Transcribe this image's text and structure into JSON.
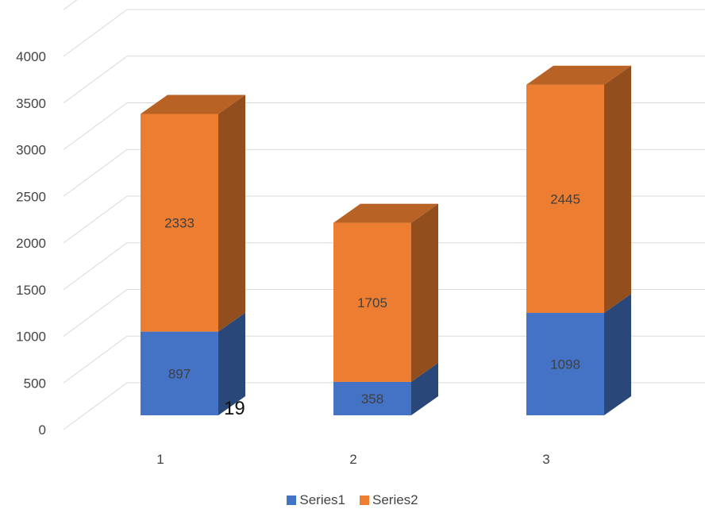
{
  "chart_data": {
    "type": "bar",
    "stacked": true,
    "three_d": true,
    "categories": [
      "1",
      "2",
      "3"
    ],
    "series": [
      {
        "name": "Series1",
        "values": [
          897,
          358,
          1098
        ],
        "color": "#4472C4"
      },
      {
        "name": "Series2",
        "values": [
          2333,
          1705,
          2445
        ],
        "color": "#ED7D31"
      }
    ],
    "y_ticks": [
      "0",
      "500",
      "1000",
      "1500",
      "2000",
      "2500",
      "3000",
      "3500",
      "4000"
    ],
    "ylim": [
      0,
      4000
    ],
    "grid": true,
    "legend_position": "bottom",
    "annotation": "19"
  }
}
